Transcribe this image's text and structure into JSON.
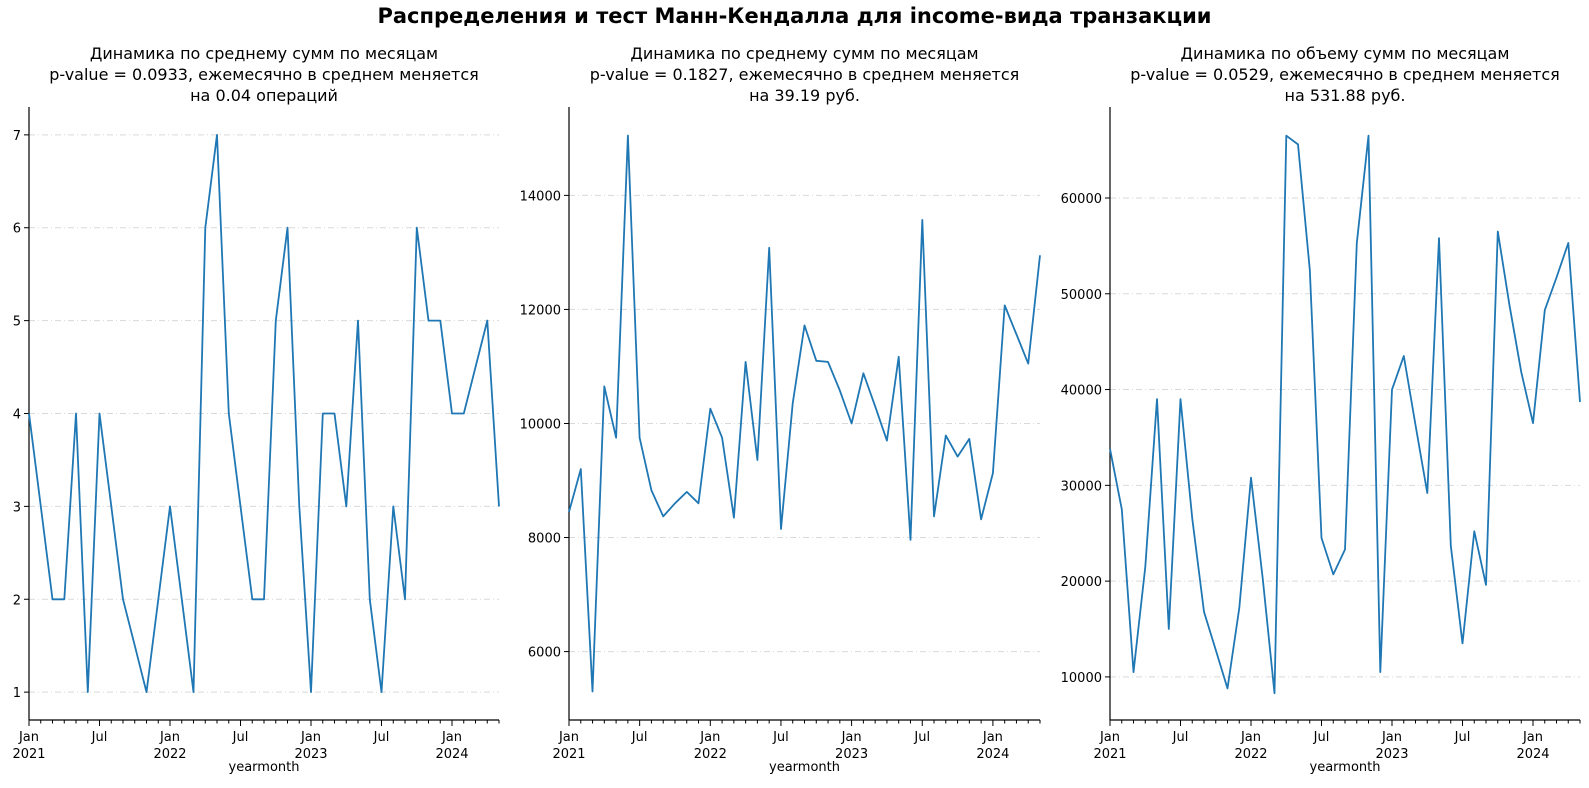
{
  "suptitle": "Распределения и тест Манн-Кендалла для income-вида транзакции",
  "chart_data": [
    {
      "type": "line",
      "title": [
        "Динамика по среднему сумм по месяцам",
        "p-value = 0.0933, ежемесячно в среднем меняется",
        "на 0.04 операций"
      ],
      "xlabel": "yearmonth",
      "ylabel": "",
      "ylim": [
        0.7,
        7.3
      ],
      "yticks": [
        1,
        2,
        3,
        4,
        5,
        6,
        7
      ],
      "ytick_labels": [
        "1",
        "2",
        "3",
        "4",
        "5",
        "6",
        "7"
      ],
      "grid": "y-dashed",
      "x": [
        "2021-01",
        "2021-02",
        "2021-03",
        "2021-04",
        "2021-05",
        "2021-06",
        "2021-07",
        "2021-08",
        "2021-09",
        "2021-10",
        "2021-11",
        "2021-12",
        "2022-01",
        "2022-02",
        "2022-03",
        "2022-04",
        "2022-05",
        "2022-06",
        "2022-07",
        "2022-08",
        "2022-09",
        "2022-10",
        "2022-11",
        "2022-12",
        "2023-01",
        "2023-02",
        "2023-03",
        "2023-04",
        "2023-05",
        "2023-06",
        "2023-07",
        "2023-08",
        "2023-09",
        "2023-10",
        "2023-11",
        "2023-12",
        "2024-01",
        "2024-02",
        "2024-03",
        "2024-04",
        "2024-05"
      ],
      "values": [
        4,
        3,
        2,
        2,
        4,
        1,
        4,
        3,
        2,
        1.5,
        1,
        2,
        3,
        2,
        1,
        6,
        7,
        4,
        3,
        2,
        2,
        5,
        6,
        3,
        1,
        4,
        4,
        3,
        5,
        2,
        1,
        3,
        2,
        6,
        5,
        5,
        4,
        4,
        4.5,
        5,
        3
      ]
    },
    {
      "type": "line",
      "title": [
        "Динамика по среднему сумм по месяцам",
        "p-value = 0.1827, ежемесячно в среднем меняется",
        "на 39.19 руб."
      ],
      "xlabel": "yearmonth",
      "ylabel": "",
      "ylim": [
        4800,
        15550
      ],
      "yticks": [
        6000,
        8000,
        10000,
        12000,
        14000
      ],
      "ytick_labels": [
        "6000",
        "8000",
        "10000",
        "12000",
        "14000"
      ],
      "grid": "y-dashed",
      "x": [
        "2021-01",
        "2021-02",
        "2021-03",
        "2021-04",
        "2021-05",
        "2021-06",
        "2021-07",
        "2021-08",
        "2021-09",
        "2021-10",
        "2021-11",
        "2021-12",
        "2022-01",
        "2022-02",
        "2022-03",
        "2022-04",
        "2022-05",
        "2022-06",
        "2022-07",
        "2022-08",
        "2022-09",
        "2022-10",
        "2022-11",
        "2022-12",
        "2023-01",
        "2023-02",
        "2023-03",
        "2023-04",
        "2023-05",
        "2023-06",
        "2023-07",
        "2023-08",
        "2023-09",
        "2023-10",
        "2023-11",
        "2023-12",
        "2024-01",
        "2024-02",
        "2024-03",
        "2024-04",
        "2024-05"
      ],
      "values": [
        8450,
        9200,
        5300,
        10650,
        9750,
        15050,
        9750,
        8830,
        8370,
        8600,
        8800,
        8600,
        10260,
        9750,
        8350,
        11080,
        9360,
        13080,
        8150,
        10350,
        11720,
        11100,
        11080,
        10580,
        10000,
        10880,
        10300,
        9700,
        11170,
        7960,
        13570,
        8370,
        9790,
        9420,
        9730,
        8320,
        9130,
        12070,
        11560,
        11050,
        12950
      ]
    },
    {
      "type": "line",
      "title": [
        "Динамика по объему сумм по месяцам",
        "p-value = 0.0529, ежемесячно в среднем меняется",
        "на 531.88 руб."
      ],
      "xlabel": "yearmonth",
      "ylabel": "",
      "ylim": [
        5500,
        69500
      ],
      "yticks": [
        10000,
        20000,
        30000,
        40000,
        50000,
        60000
      ],
      "ytick_labels": [
        "10000",
        "20000",
        "30000",
        "40000",
        "50000",
        "60000"
      ],
      "grid": "y-dashed",
      "x": [
        "2021-01",
        "2021-02",
        "2021-03",
        "2021-04",
        "2021-05",
        "2021-06",
        "2021-07",
        "2021-08",
        "2021-09",
        "2021-10",
        "2021-11",
        "2021-12",
        "2022-01",
        "2022-02",
        "2022-03",
        "2022-04",
        "2022-05",
        "2022-06",
        "2022-07",
        "2022-08",
        "2022-09",
        "2022-10",
        "2022-11",
        "2022-12",
        "2023-01",
        "2023-02",
        "2023-03",
        "2023-04",
        "2023-05",
        "2023-06",
        "2023-07",
        "2023-08",
        "2023-09",
        "2023-10",
        "2023-11",
        "2023-12",
        "2024-01",
        "2024-02",
        "2024-03",
        "2024-04",
        "2024-05"
      ],
      "values": [
        33800,
        27500,
        10500,
        21500,
        39000,
        15000,
        39000,
        26500,
        16800,
        12800,
        8800,
        17200,
        30800,
        20200,
        8300,
        66500,
        65600,
        52500,
        24500,
        20700,
        23300,
        55300,
        66500,
        10500,
        40000,
        43500,
        36300,
        29200,
        55800,
        23700,
        13500,
        25200,
        19600,
        56500,
        48800,
        41800,
        36500,
        48300,
        51700,
        55300,
        38700
      ]
    }
  ],
  "x_axis": {
    "major_ticks": [
      "Jan\n2021",
      "Jul",
      "Jan\n2022",
      "Jul",
      "Jan\n2023",
      "Jul",
      "Jan\n2024"
    ]
  },
  "colors": {
    "line": "#1f77b4",
    "grid": "#d9d9d9",
    "axis": "#000000"
  }
}
